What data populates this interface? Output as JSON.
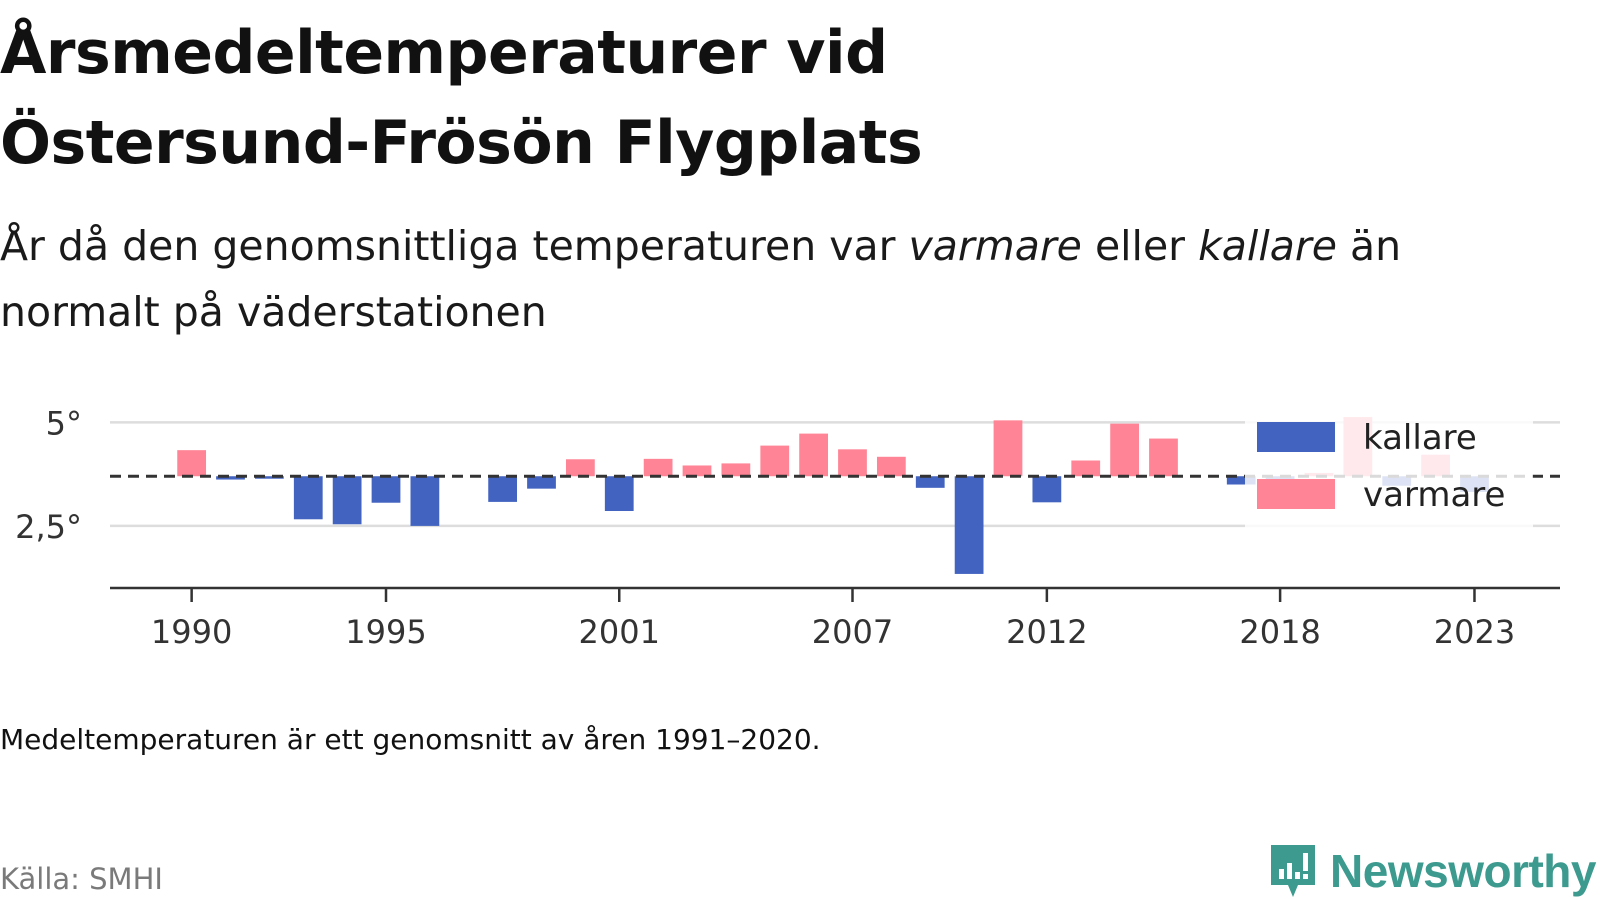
{
  "header": {
    "title": "Årsmedeltemperaturer vid Östersund-Frösön Flygplats",
    "subtitle_pre": "År då den genomsnittliga temperaturen var ",
    "subtitle_warm": "varmare",
    "subtitle_mid": " eller ",
    "subtitle_cold": "kallare",
    "subtitle_post": " än normalt på väderstationen"
  },
  "footer": {
    "note": "Medeltemperaturen är ett genomsnitt av åren 1991–2020.",
    "source": "Källa: SMHI",
    "brand": "Newsworthy"
  },
  "colors": {
    "kallare": "#4263c0",
    "varmare": "#ff8596",
    "grid": "#dddddd",
    "axis": "#333333",
    "brand": "#3c9a8f"
  },
  "chart_data": {
    "type": "bar",
    "baseline": 3.7,
    "ylim": [
      1.0,
      5.3
    ],
    "xlim": [
      1987.9,
      2025.2
    ],
    "yticks": [
      2.5,
      5
    ],
    "ytick_labels": [
      "2,5°",
      "5°"
    ],
    "xticks": [
      1990,
      1995,
      2001,
      2007,
      2012,
      2018,
      2023
    ],
    "xtick_labels": [
      "1990",
      "1995",
      "2001",
      "2007",
      "2012",
      "2018",
      "2023"
    ],
    "grid": true,
    "legend_position": "top-right",
    "legend": [
      {
        "key": "kallare",
        "label": "kallare"
      },
      {
        "key": "varmare",
        "label": "varmare"
      }
    ],
    "x": [
      1990,
      1991,
      1992,
      1993,
      1994,
      1995,
      1996,
      1998,
      1999,
      2000,
      2001,
      2002,
      2003,
      2004,
      2005,
      2006,
      2007,
      2008,
      2009,
      2010,
      2011,
      2012,
      2013,
      2014,
      2015,
      2017,
      2018,
      2019,
      2020,
      2021,
      2022,
      2023
    ],
    "values": [
      4.33,
      3.62,
      3.64,
      2.66,
      2.54,
      3.06,
      2.5,
      3.08,
      3.4,
      4.11,
      2.86,
      4.12,
      3.96,
      4.01,
      4.44,
      4.73,
      4.35,
      4.17,
      3.42,
      1.34,
      5.05,
      3.07,
      4.08,
      4.97,
      4.61,
      3.5,
      3.5,
      3.78,
      5.13,
      3.47,
      4.22,
      3.32
    ]
  }
}
